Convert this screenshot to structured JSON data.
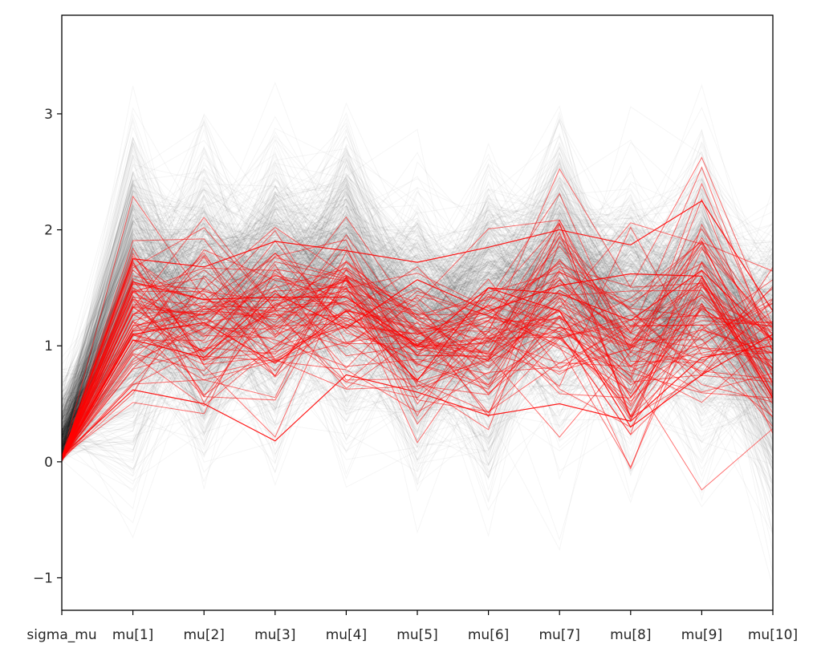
{
  "chart_data": {
    "type": "line",
    "subtype": "parallel-coordinates",
    "title": "",
    "xlabel": "",
    "ylabel": "",
    "categories": [
      "sigma_mu",
      "mu[1]",
      "mu[2]",
      "mu[3]",
      "mu[4]",
      "mu[5]",
      "mu[6]",
      "mu[7]",
      "mu[8]",
      "mu[9]",
      "mu[10]"
    ],
    "ylim": [
      -1.28,
      3.85
    ],
    "yticks": [
      -1,
      0,
      1,
      2,
      3
    ],
    "ytick_labels": [
      "−1",
      "0",
      "1",
      "2",
      "3"
    ],
    "grid": false,
    "legend": "none",
    "colors": {
      "samples": "#000000",
      "divergent": "#ff0000",
      "frame": "#000000"
    },
    "series": [
      {
        "name": "",
        "color": "#000000",
        "opacity": 0.04,
        "role": "samples",
        "mean": [
          0.1,
          1.4,
          1.35,
          1.45,
          1.55,
          1.15,
          1.25,
          1.55,
          1.25,
          1.45,
          0.85
        ],
        "sd": [
          0.25,
          0.6,
          0.55,
          0.55,
          0.55,
          0.5,
          0.55,
          0.55,
          0.5,
          0.55,
          0.5
        ]
      },
      {
        "name": "",
        "color": "#ff0000",
        "opacity": 0.55,
        "role": "divergent",
        "mean": [
          0.03,
          1.25,
          1.15,
          1.2,
          1.3,
          1.0,
          1.05,
          1.35,
          1.05,
          1.35,
          0.95
        ],
        "sd": [
          0.01,
          0.35,
          0.35,
          0.4,
          0.35,
          0.3,
          0.35,
          0.4,
          0.45,
          0.45,
          0.3
        ],
        "highlight": [
          [
            0.03,
            1.75,
            1.68,
            1.9,
            1.82,
            1.72,
            1.85,
            2.0,
            1.87,
            2.25,
            1.3
          ],
          [
            0.04,
            1.55,
            1.4,
            1.42,
            1.42,
            1.0,
            1.5,
            1.45,
            1.22,
            1.65,
            1.05
          ],
          [
            0.03,
            1.05,
            0.9,
            1.45,
            1.15,
            1.57,
            1.3,
            1.52,
            1.62,
            1.6,
            0.55
          ],
          [
            0.03,
            1.1,
            1.2,
            0.85,
            1.3,
            0.7,
            1.5,
            1.3,
            0.3,
            0.75,
            1.1
          ],
          [
            0.05,
            0.62,
            0.5,
            0.18,
            0.75,
            0.6,
            0.4,
            0.5,
            0.35,
            0.9,
            1.0
          ]
        ]
      }
    ]
  }
}
